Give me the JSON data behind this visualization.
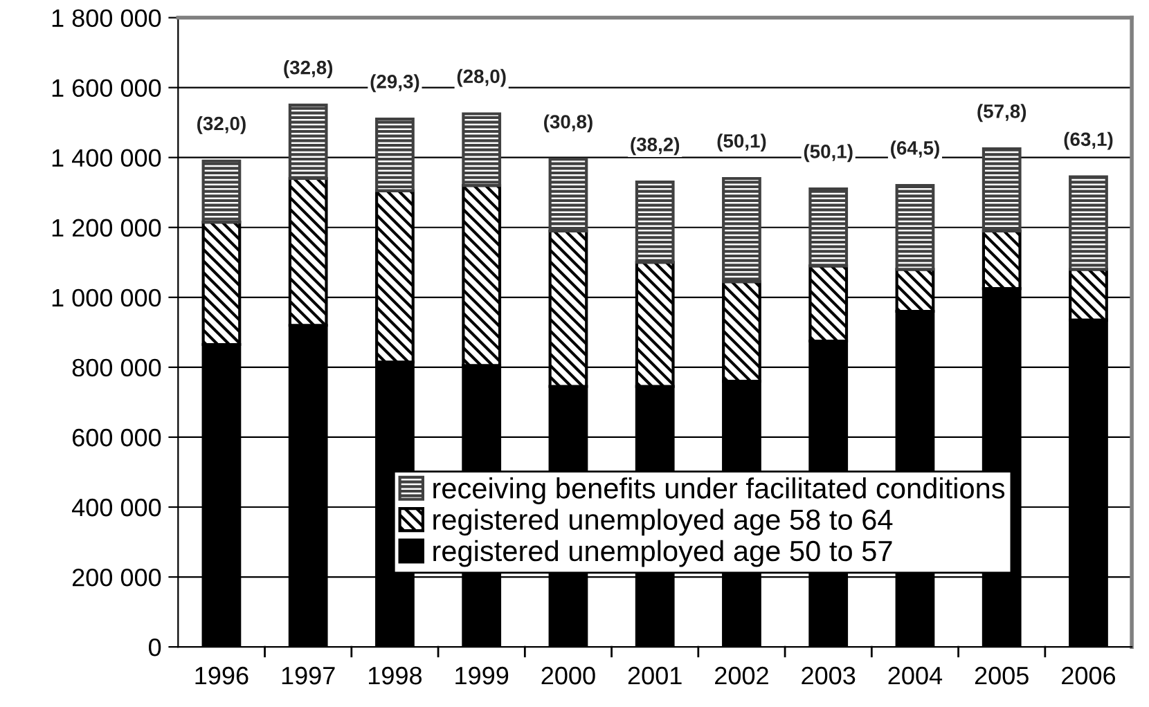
{
  "chart_data": {
    "type": "bar",
    "stacked": true,
    "categories": [
      "1996",
      "1997",
      "1998",
      "1999",
      "2000",
      "2001",
      "2002",
      "2003",
      "2004",
      "2005",
      "2006"
    ],
    "series": [
      {
        "name": "registered unemployed age 50 to 57",
        "color": "#000000",
        "values": [
          865000,
          920000,
          815000,
          805000,
          745000,
          745000,
          760000,
          875000,
          960000,
          1025000,
          935000
        ]
      },
      {
        "name": "registered unemployed age 58 to 64",
        "color": "#000000",
        "values": [
          350000,
          420000,
          490000,
          515000,
          445000,
          355000,
          285000,
          215000,
          120000,
          165000,
          145000
        ]
      },
      {
        "name": "receiving benefits under facilitated conditions",
        "color": "#404040",
        "values": [
          175000,
          210000,
          205000,
          205000,
          205000,
          230000,
          295000,
          220000,
          240000,
          235000,
          265000
        ]
      }
    ],
    "ylim": [
      0,
      1800000
    ],
    "yticks": [
      {
        "value": 0,
        "label": "0"
      },
      {
        "value": 200000,
        "label": "200 000"
      },
      {
        "value": 400000,
        "label": "400 000"
      },
      {
        "value": 600000,
        "label": "600 000"
      },
      {
        "value": 800000,
        "label": "800 000"
      },
      {
        "value": 1000000,
        "label": "1 000 000"
      },
      {
        "value": 1200000,
        "label": "1 200 000"
      },
      {
        "value": 1400000,
        "label": "1 400 000"
      },
      {
        "value": 1600000,
        "label": "1 600 000"
      },
      {
        "value": 1800000,
        "label": "1 800 000"
      }
    ],
    "grid": "y",
    "legend": "bottom",
    "annotations": [
      "(32,0)",
      "(32,8)",
      "(29,3)",
      "(28,0)",
      "(30,8)",
      "(38,2)",
      "(50,1)",
      "(50,1)",
      "(64,5)",
      "(57,8)",
      "(63,1)"
    ]
  }
}
